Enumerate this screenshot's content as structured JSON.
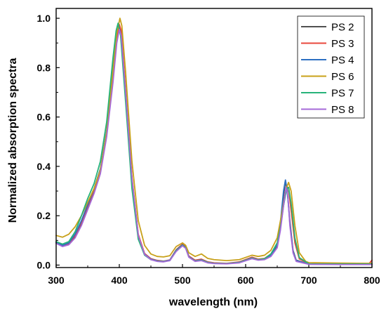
{
  "chart_data": {
    "type": "line",
    "title": "",
    "xlabel": "wavelength (nm)",
    "ylabel": "Normalized absorption spectra",
    "xlim": [
      300,
      800
    ],
    "ylim": [
      -0.01,
      1.04
    ],
    "xticks": [
      "300",
      "400",
      "500",
      "600",
      "700",
      "800"
    ],
    "yticks": [
      "0.0",
      "0.2",
      "0.4",
      "0.6",
      "0.8",
      "1.0"
    ],
    "legend_position": "top-right",
    "grid": false,
    "series": [
      {
        "name": "PS 2",
        "color": "#505050",
        "points": [
          [
            300,
            0.09
          ],
          [
            310,
            0.078
          ],
          [
            320,
            0.085
          ],
          [
            330,
            0.115
          ],
          [
            340,
            0.17
          ],
          [
            350,
            0.235
          ],
          [
            360,
            0.3
          ],
          [
            370,
            0.38
          ],
          [
            380,
            0.53
          ],
          [
            390,
            0.77
          ],
          [
            395,
            0.9
          ],
          [
            400,
            0.965
          ],
          [
            403,
            0.94
          ],
          [
            410,
            0.7
          ],
          [
            420,
            0.35
          ],
          [
            430,
            0.12
          ],
          [
            440,
            0.045
          ],
          [
            450,
            0.025
          ],
          [
            460,
            0.018
          ],
          [
            470,
            0.015
          ],
          [
            480,
            0.02
          ],
          [
            490,
            0.06
          ],
          [
            500,
            0.083
          ],
          [
            505,
            0.072
          ],
          [
            510,
            0.035
          ],
          [
            520,
            0.018
          ],
          [
            530,
            0.022
          ],
          [
            540,
            0.012
          ],
          [
            550,
            0.008
          ],
          [
            570,
            0.006
          ],
          [
            590,
            0.012
          ],
          [
            610,
            0.03
          ],
          [
            620,
            0.022
          ],
          [
            630,
            0.025
          ],
          [
            640,
            0.04
          ],
          [
            650,
            0.08
          ],
          [
            655,
            0.16
          ],
          [
            660,
            0.28
          ],
          [
            663,
            0.34
          ],
          [
            666,
            0.3
          ],
          [
            670,
            0.18
          ],
          [
            675,
            0.06
          ],
          [
            680,
            0.02
          ],
          [
            700,
            0.004
          ],
          [
            750,
            0.003
          ],
          [
            800,
            0.003
          ]
        ]
      },
      {
        "name": "PS 3",
        "color": "#e8473c",
        "points": [
          [
            300,
            0.09
          ],
          [
            310,
            0.078
          ],
          [
            320,
            0.088
          ],
          [
            330,
            0.12
          ],
          [
            340,
            0.175
          ],
          [
            350,
            0.24
          ],
          [
            360,
            0.305
          ],
          [
            370,
            0.385
          ],
          [
            380,
            0.54
          ],
          [
            390,
            0.78
          ],
          [
            395,
            0.91
          ],
          [
            400,
            0.975
          ],
          [
            403,
            0.95
          ],
          [
            410,
            0.71
          ],
          [
            420,
            0.355
          ],
          [
            430,
            0.125
          ],
          [
            440,
            0.047
          ],
          [
            450,
            0.026
          ],
          [
            460,
            0.019
          ],
          [
            470,
            0.016
          ],
          [
            480,
            0.021
          ],
          [
            490,
            0.062
          ],
          [
            500,
            0.085
          ],
          [
            505,
            0.074
          ],
          [
            510,
            0.037
          ],
          [
            520,
            0.02
          ],
          [
            530,
            0.024
          ],
          [
            540,
            0.013
          ],
          [
            550,
            0.009
          ],
          [
            570,
            0.007
          ],
          [
            590,
            0.013
          ],
          [
            610,
            0.032
          ],
          [
            620,
            0.024
          ],
          [
            630,
            0.027
          ],
          [
            640,
            0.045
          ],
          [
            650,
            0.085
          ],
          [
            655,
            0.15
          ],
          [
            660,
            0.25
          ],
          [
            665,
            0.32
          ],
          [
            668,
            0.31
          ],
          [
            672,
            0.22
          ],
          [
            678,
            0.09
          ],
          [
            685,
            0.025
          ],
          [
            700,
            0.005
          ],
          [
            750,
            0.004
          ],
          [
            795,
            0.004
          ],
          [
            800,
            0.02
          ]
        ]
      },
      {
        "name": "PS 4",
        "color": "#2c6fc2",
        "points": [
          [
            300,
            0.092
          ],
          [
            310,
            0.08
          ],
          [
            320,
            0.09
          ],
          [
            330,
            0.125
          ],
          [
            340,
            0.18
          ],
          [
            350,
            0.245
          ],
          [
            360,
            0.31
          ],
          [
            370,
            0.39
          ],
          [
            380,
            0.545
          ],
          [
            390,
            0.8
          ],
          [
            395,
            0.93
          ],
          [
            398,
            0.975
          ],
          [
            402,
            0.94
          ],
          [
            410,
            0.69
          ],
          [
            420,
            0.34
          ],
          [
            430,
            0.115
          ],
          [
            440,
            0.044
          ],
          [
            450,
            0.024
          ],
          [
            460,
            0.017
          ],
          [
            470,
            0.015
          ],
          [
            480,
            0.02
          ],
          [
            490,
            0.06
          ],
          [
            500,
            0.082
          ],
          [
            505,
            0.071
          ],
          [
            510,
            0.034
          ],
          [
            520,
            0.017
          ],
          [
            530,
            0.021
          ],
          [
            540,
            0.011
          ],
          [
            550,
            0.007
          ],
          [
            570,
            0.006
          ],
          [
            590,
            0.011
          ],
          [
            610,
            0.029
          ],
          [
            620,
            0.021
          ],
          [
            630,
            0.024
          ],
          [
            640,
            0.04
          ],
          [
            650,
            0.085
          ],
          [
            655,
            0.17
          ],
          [
            660,
            0.3
          ],
          [
            663,
            0.345
          ],
          [
            666,
            0.3
          ],
          [
            670,
            0.17
          ],
          [
            675,
            0.055
          ],
          [
            680,
            0.018
          ],
          [
            700,
            0.004
          ],
          [
            750,
            0.003
          ],
          [
            800,
            0.003
          ]
        ]
      },
      {
        "name": "PS 6",
        "color": "#c8a11a",
        "points": [
          [
            300,
            0.12
          ],
          [
            310,
            0.113
          ],
          [
            320,
            0.125
          ],
          [
            330,
            0.155
          ],
          [
            340,
            0.2
          ],
          [
            350,
            0.255
          ],
          [
            360,
            0.31
          ],
          [
            370,
            0.385
          ],
          [
            380,
            0.54
          ],
          [
            390,
            0.79
          ],
          [
            396,
            0.94
          ],
          [
            401,
            1.0
          ],
          [
            404,
            0.97
          ],
          [
            410,
            0.78
          ],
          [
            420,
            0.42
          ],
          [
            430,
            0.18
          ],
          [
            440,
            0.08
          ],
          [
            450,
            0.045
          ],
          [
            460,
            0.035
          ],
          [
            470,
            0.033
          ],
          [
            480,
            0.038
          ],
          [
            490,
            0.075
          ],
          [
            500,
            0.09
          ],
          [
            505,
            0.08
          ],
          [
            510,
            0.05
          ],
          [
            520,
            0.035
          ],
          [
            530,
            0.045
          ],
          [
            540,
            0.027
          ],
          [
            550,
            0.022
          ],
          [
            570,
            0.018
          ],
          [
            590,
            0.022
          ],
          [
            610,
            0.04
          ],
          [
            620,
            0.035
          ],
          [
            630,
            0.04
          ],
          [
            640,
            0.06
          ],
          [
            650,
            0.11
          ],
          [
            658,
            0.22
          ],
          [
            664,
            0.31
          ],
          [
            668,
            0.335
          ],
          [
            672,
            0.3
          ],
          [
            678,
            0.16
          ],
          [
            685,
            0.05
          ],
          [
            695,
            0.015
          ],
          [
            700,
            0.01
          ],
          [
            750,
            0.008
          ],
          [
            800,
            0.007
          ]
        ]
      },
      {
        "name": "PS 7",
        "color": "#27b37a",
        "points": [
          [
            300,
            0.095
          ],
          [
            310,
            0.085
          ],
          [
            320,
            0.095
          ],
          [
            330,
            0.135
          ],
          [
            340,
            0.2
          ],
          [
            350,
            0.27
          ],
          [
            360,
            0.33
          ],
          [
            370,
            0.42
          ],
          [
            380,
            0.58
          ],
          [
            390,
            0.84
          ],
          [
            395,
            0.95
          ],
          [
            398,
            0.98
          ],
          [
            402,
            0.93
          ],
          [
            410,
            0.66
          ],
          [
            420,
            0.31
          ],
          [
            430,
            0.105
          ],
          [
            440,
            0.04
          ],
          [
            450,
            0.022
          ],
          [
            460,
            0.016
          ],
          [
            470,
            0.014
          ],
          [
            480,
            0.018
          ],
          [
            490,
            0.058
          ],
          [
            500,
            0.08
          ],
          [
            505,
            0.07
          ],
          [
            510,
            0.033
          ],
          [
            520,
            0.016
          ],
          [
            530,
            0.02
          ],
          [
            540,
            0.011
          ],
          [
            550,
            0.007
          ],
          [
            570,
            0.006
          ],
          [
            590,
            0.011
          ],
          [
            610,
            0.028
          ],
          [
            620,
            0.022
          ],
          [
            630,
            0.026
          ],
          [
            640,
            0.045
          ],
          [
            650,
            0.09
          ],
          [
            655,
            0.15
          ],
          [
            660,
            0.24
          ],
          [
            665,
            0.31
          ],
          [
            668,
            0.315
          ],
          [
            672,
            0.25
          ],
          [
            678,
            0.11
          ],
          [
            685,
            0.03
          ],
          [
            700,
            0.005
          ],
          [
            750,
            0.004
          ],
          [
            800,
            0.004
          ]
        ]
      },
      {
        "name": "PS 8",
        "color": "#a66ad8",
        "points": [
          [
            300,
            0.088
          ],
          [
            310,
            0.075
          ],
          [
            320,
            0.082
          ],
          [
            330,
            0.11
          ],
          [
            340,
            0.16
          ],
          [
            350,
            0.225
          ],
          [
            360,
            0.29
          ],
          [
            370,
            0.37
          ],
          [
            380,
            0.52
          ],
          [
            390,
            0.74
          ],
          [
            396,
            0.9
          ],
          [
            400,
            0.955
          ],
          [
            403,
            0.93
          ],
          [
            410,
            0.7
          ],
          [
            420,
            0.35
          ],
          [
            430,
            0.12
          ],
          [
            440,
            0.043
          ],
          [
            450,
            0.022
          ],
          [
            460,
            0.015
          ],
          [
            470,
            0.013
          ],
          [
            480,
            0.018
          ],
          [
            490,
            0.055
          ],
          [
            500,
            0.078
          ],
          [
            505,
            0.068
          ],
          [
            510,
            0.032
          ],
          [
            520,
            0.015
          ],
          [
            530,
            0.018
          ],
          [
            540,
            0.009
          ],
          [
            550,
            0.006
          ],
          [
            570,
            0.005
          ],
          [
            590,
            0.009
          ],
          [
            610,
            0.026
          ],
          [
            620,
            0.02
          ],
          [
            630,
            0.022
          ],
          [
            640,
            0.035
          ],
          [
            650,
            0.07
          ],
          [
            655,
            0.14
          ],
          [
            660,
            0.24
          ],
          [
            664,
            0.315
          ],
          [
            667,
            0.28
          ],
          [
            670,
            0.16
          ],
          [
            675,
            0.05
          ],
          [
            680,
            0.015
          ],
          [
            700,
            0.003
          ],
          [
            750,
            0.002
          ],
          [
            800,
            0.002
          ]
        ]
      }
    ]
  }
}
